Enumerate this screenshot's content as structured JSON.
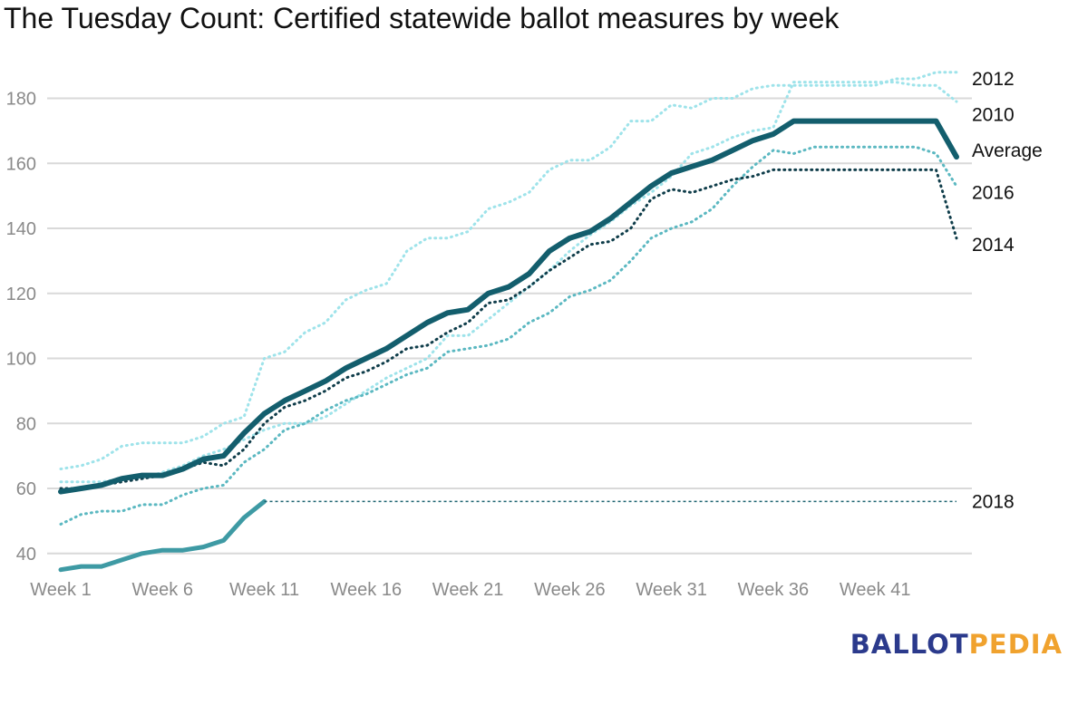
{
  "title": "The Tuesday Count: Certified statewide ballot measures by week",
  "logo": {
    "part1": "BALLOT",
    "part2": "PEDIA"
  },
  "chart_data": {
    "type": "line",
    "title": "The Tuesday Count: Certified statewide ballot measures by week",
    "xlabel": "",
    "ylabel": "",
    "ylim": [
      35,
      190
    ],
    "xlim": [
      1,
      45
    ],
    "y_ticks": [
      40,
      60,
      80,
      100,
      120,
      140,
      160,
      180
    ],
    "x_ticks": [
      {
        "week": 1,
        "label": "Week 1"
      },
      {
        "week": 6,
        "label": "Week 6"
      },
      {
        "week": 11,
        "label": "Week 11"
      },
      {
        "week": 16,
        "label": "Week 16"
      },
      {
        "week": 21,
        "label": "Week 21"
      },
      {
        "week": 26,
        "label": "Week 26"
      },
      {
        "week": 31,
        "label": "Week 31"
      },
      {
        "week": 36,
        "label": "Week 36"
      },
      {
        "week": 41,
        "label": "Week 41"
      }
    ],
    "grid": true,
    "series": [
      {
        "name": "2012",
        "color": "#9ee3ea",
        "style": "dotted",
        "points": [
          [
            1,
            66
          ],
          [
            2,
            67
          ],
          [
            3,
            69
          ],
          [
            4,
            73
          ],
          [
            5,
            74
          ],
          [
            6,
            74
          ],
          [
            7,
            74
          ],
          [
            8,
            76
          ],
          [
            9,
            80
          ],
          [
            10,
            82
          ],
          [
            11,
            100
          ],
          [
            12,
            102
          ],
          [
            13,
            108
          ],
          [
            14,
            111
          ],
          [
            15,
            118
          ],
          [
            16,
            121
          ],
          [
            17,
            123
          ],
          [
            18,
            133
          ],
          [
            19,
            137
          ],
          [
            20,
            137
          ],
          [
            21,
            139
          ],
          [
            22,
            146
          ],
          [
            23,
            148
          ],
          [
            24,
            151
          ],
          [
            25,
            158
          ],
          [
            26,
            161
          ],
          [
            27,
            161
          ],
          [
            28,
            165
          ],
          [
            29,
            173
          ],
          [
            30,
            173
          ],
          [
            31,
            178
          ],
          [
            32,
            177
          ],
          [
            33,
            180
          ],
          [
            34,
            180
          ],
          [
            35,
            183
          ],
          [
            36,
            184
          ],
          [
            37,
            184
          ],
          [
            38,
            184
          ],
          [
            39,
            184
          ],
          [
            40,
            184
          ],
          [
            41,
            184
          ],
          [
            42,
            186
          ],
          [
            43,
            186
          ],
          [
            44,
            188
          ],
          [
            45,
            188
          ]
        ]
      },
      {
        "name": "2010",
        "color": "#9ee3ea",
        "style": "dotted",
        "points": [
          [
            1,
            62
          ],
          [
            2,
            62
          ],
          [
            3,
            62
          ],
          [
            4,
            63
          ],
          [
            5,
            63
          ],
          [
            6,
            65
          ],
          [
            7,
            67
          ],
          [
            8,
            70
          ],
          [
            9,
            72
          ],
          [
            10,
            75
          ],
          [
            11,
            78
          ],
          [
            12,
            80
          ],
          [
            13,
            80
          ],
          [
            14,
            82
          ],
          [
            15,
            86
          ],
          [
            16,
            90
          ],
          [
            17,
            94
          ],
          [
            18,
            97
          ],
          [
            19,
            100
          ],
          [
            20,
            107
          ],
          [
            21,
            107
          ],
          [
            22,
            112
          ],
          [
            23,
            117
          ],
          [
            24,
            122
          ],
          [
            25,
            127
          ],
          [
            26,
            133
          ],
          [
            27,
            138
          ],
          [
            28,
            142
          ],
          [
            29,
            147
          ],
          [
            30,
            151
          ],
          [
            31,
            156
          ],
          [
            32,
            163
          ],
          [
            33,
            165
          ],
          [
            34,
            168
          ],
          [
            35,
            170
          ],
          [
            36,
            171
          ],
          [
            37,
            185
          ],
          [
            38,
            185
          ],
          [
            39,
            185
          ],
          [
            40,
            185
          ],
          [
            41,
            185
          ],
          [
            42,
            185
          ],
          [
            43,
            184
          ],
          [
            44,
            184
          ],
          [
            45,
            179
          ]
        ]
      },
      {
        "name": "2016",
        "color": "#5bb8c1",
        "style": "dotted",
        "points": [
          [
            1,
            49
          ],
          [
            2,
            52
          ],
          [
            3,
            53
          ],
          [
            4,
            53
          ],
          [
            5,
            55
          ],
          [
            6,
            55
          ],
          [
            7,
            58
          ],
          [
            8,
            60
          ],
          [
            9,
            61
          ],
          [
            10,
            68
          ],
          [
            11,
            72
          ],
          [
            12,
            78
          ],
          [
            13,
            80
          ],
          [
            14,
            84
          ],
          [
            15,
            87
          ],
          [
            16,
            89
          ],
          [
            17,
            92
          ],
          [
            18,
            95
          ],
          [
            19,
            97
          ],
          [
            20,
            102
          ],
          [
            21,
            103
          ],
          [
            22,
            104
          ],
          [
            23,
            106
          ],
          [
            24,
            111
          ],
          [
            25,
            114
          ],
          [
            26,
            119
          ],
          [
            27,
            121
          ],
          [
            28,
            124
          ],
          [
            29,
            130
          ],
          [
            30,
            137
          ],
          [
            31,
            140
          ],
          [
            32,
            142
          ],
          [
            33,
            146
          ],
          [
            34,
            153
          ],
          [
            35,
            159
          ],
          [
            36,
            164
          ],
          [
            37,
            163
          ],
          [
            38,
            165
          ],
          [
            39,
            165
          ],
          [
            40,
            165
          ],
          [
            41,
            165
          ],
          [
            42,
            165
          ],
          [
            43,
            165
          ],
          [
            44,
            163
          ],
          [
            45,
            153
          ]
        ]
      },
      {
        "name": "2014",
        "color": "#0f3d4a",
        "style": "dotted",
        "points": [
          [
            1,
            60
          ],
          [
            2,
            60
          ],
          [
            3,
            61
          ],
          [
            4,
            62
          ],
          [
            5,
            63
          ],
          [
            6,
            64
          ],
          [
            7,
            66
          ],
          [
            8,
            68
          ],
          [
            9,
            67
          ],
          [
            10,
            72
          ],
          [
            11,
            80
          ],
          [
            12,
            85
          ],
          [
            13,
            87
          ],
          [
            14,
            90
          ],
          [
            15,
            94
          ],
          [
            16,
            96
          ],
          [
            17,
            99
          ],
          [
            18,
            103
          ],
          [
            19,
            104
          ],
          [
            20,
            108
          ],
          [
            21,
            111
          ],
          [
            22,
            117
          ],
          [
            23,
            118
          ],
          [
            24,
            122
          ],
          [
            25,
            127
          ],
          [
            26,
            131
          ],
          [
            27,
            135
          ],
          [
            28,
            136
          ],
          [
            29,
            140
          ],
          [
            30,
            149
          ],
          [
            31,
            152
          ],
          [
            32,
            151
          ],
          [
            33,
            153
          ],
          [
            34,
            155
          ],
          [
            35,
            156
          ],
          [
            36,
            158
          ],
          [
            37,
            158
          ],
          [
            38,
            158
          ],
          [
            39,
            158
          ],
          [
            40,
            158
          ],
          [
            41,
            158
          ],
          [
            42,
            158
          ],
          [
            43,
            158
          ],
          [
            44,
            158
          ],
          [
            45,
            137
          ]
        ]
      },
      {
        "name": "Average",
        "color": "#135e6d",
        "style": "solid-thick",
        "points": [
          [
            1,
            59
          ],
          [
            2,
            60
          ],
          [
            3,
            61
          ],
          [
            4,
            63
          ],
          [
            5,
            64
          ],
          [
            6,
            64
          ],
          [
            7,
            66
          ],
          [
            8,
            69
          ],
          [
            9,
            70
          ],
          [
            10,
            77
          ],
          [
            11,
            83
          ],
          [
            12,
            87
          ],
          [
            13,
            90
          ],
          [
            14,
            93
          ],
          [
            15,
            97
          ],
          [
            16,
            100
          ],
          [
            17,
            103
          ],
          [
            18,
            107
          ],
          [
            19,
            111
          ],
          [
            20,
            114
          ],
          [
            21,
            115
          ],
          [
            22,
            120
          ],
          [
            23,
            122
          ],
          [
            24,
            126
          ],
          [
            25,
            133
          ],
          [
            26,
            137
          ],
          [
            27,
            139
          ],
          [
            28,
            143
          ],
          [
            29,
            148
          ],
          [
            30,
            153
          ],
          [
            31,
            157
          ],
          [
            32,
            159
          ],
          [
            33,
            161
          ],
          [
            34,
            164
          ],
          [
            35,
            167
          ],
          [
            36,
            169
          ],
          [
            37,
            173
          ],
          [
            38,
            173
          ],
          [
            39,
            173
          ],
          [
            40,
            173
          ],
          [
            41,
            173
          ],
          [
            42,
            173
          ],
          [
            43,
            173
          ],
          [
            44,
            173
          ],
          [
            45,
            162
          ]
        ]
      },
      {
        "name": "2018",
        "color": "#3e9aa4",
        "style": "solid",
        "points": [
          [
            1,
            35
          ],
          [
            2,
            36
          ],
          [
            3,
            36
          ],
          [
            4,
            38
          ],
          [
            5,
            40
          ],
          [
            6,
            41
          ],
          [
            7,
            41
          ],
          [
            8,
            42
          ],
          [
            9,
            44
          ],
          [
            10,
            51
          ],
          [
            11,
            56
          ]
        ],
        "projection": {
          "to_week": 45,
          "value": 56,
          "color": "#1d6470"
        }
      }
    ],
    "end_labels": [
      {
        "series": "2012",
        "label": "2012",
        "y_value": 186
      },
      {
        "series": "2010",
        "label": "2010",
        "y_value": 175
      },
      {
        "series": "Average",
        "label": "Average",
        "y_value": 164
      },
      {
        "series": "2016",
        "label": "2016",
        "y_value": 151
      },
      {
        "series": "2014",
        "label": "2014",
        "y_value": 135
      },
      {
        "series": "2018",
        "label": "2018",
        "y_value": 56
      }
    ]
  }
}
